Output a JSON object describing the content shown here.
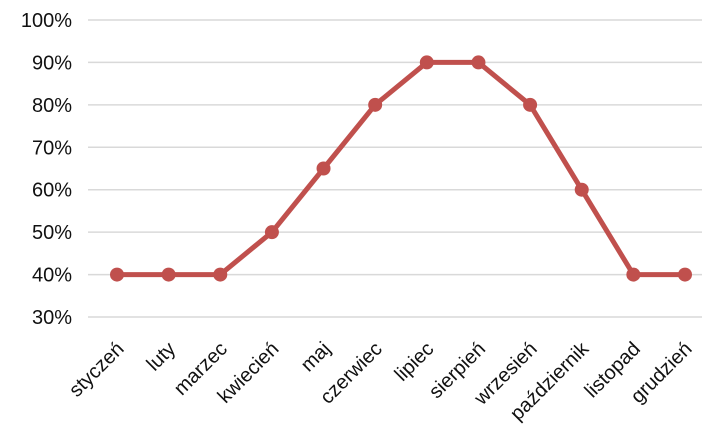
{
  "chart_data": {
    "type": "line",
    "title": "",
    "xlabel": "",
    "ylabel": "",
    "categories": [
      "styczeń",
      "luty",
      "marzec",
      "kwiecień",
      "maj",
      "czerwiec",
      "lipiec",
      "sierpień",
      "wrzesień",
      "październik",
      "listopad",
      "grudzień"
    ],
    "series": [
      {
        "values": [
          40,
          40,
          40,
          50,
          65,
          80,
          90,
          90,
          80,
          60,
          40,
          40
        ],
        "color": "#c0504d"
      }
    ],
    "ylim": [
      30,
      100
    ],
    "yticks": [
      30,
      40,
      50,
      60,
      70,
      80,
      90,
      100
    ],
    "ytick_labels": [
      "30%",
      "40%",
      "50%",
      "60%",
      "70%",
      "80%",
      "90%",
      "100%"
    ],
    "grid": true,
    "legend": "none"
  }
}
